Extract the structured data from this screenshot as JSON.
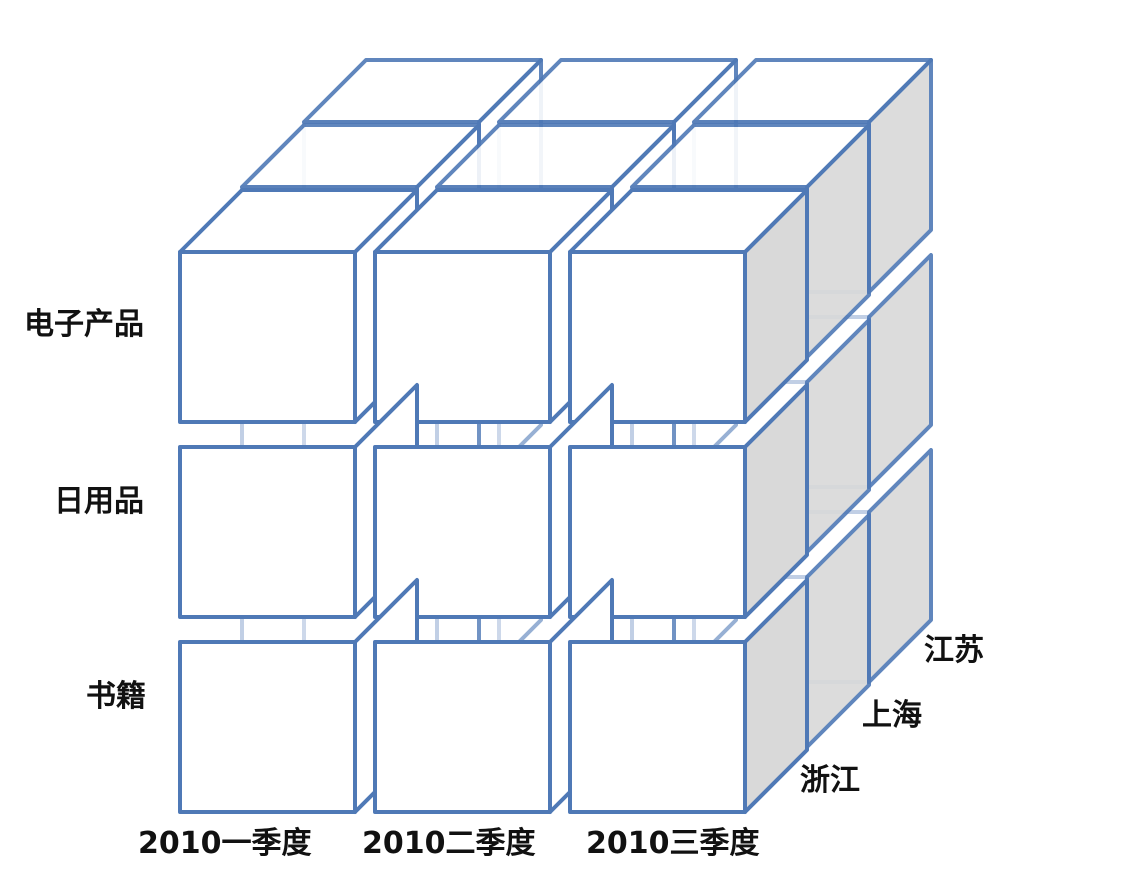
{
  "diagram": {
    "rows": [
      "电子产品",
      "日用品",
      "书籍"
    ],
    "columns": [
      "2010一季度",
      "2010二季度",
      "2010三季度"
    ],
    "depth": [
      "浙江",
      "上海",
      "江苏"
    ]
  },
  "colors": {
    "edge": "#4f79b6",
    "front_face": "#ffffff",
    "side_face": "#d9d9d9",
    "top_face": "#ffffff",
    "label": "#111111"
  }
}
